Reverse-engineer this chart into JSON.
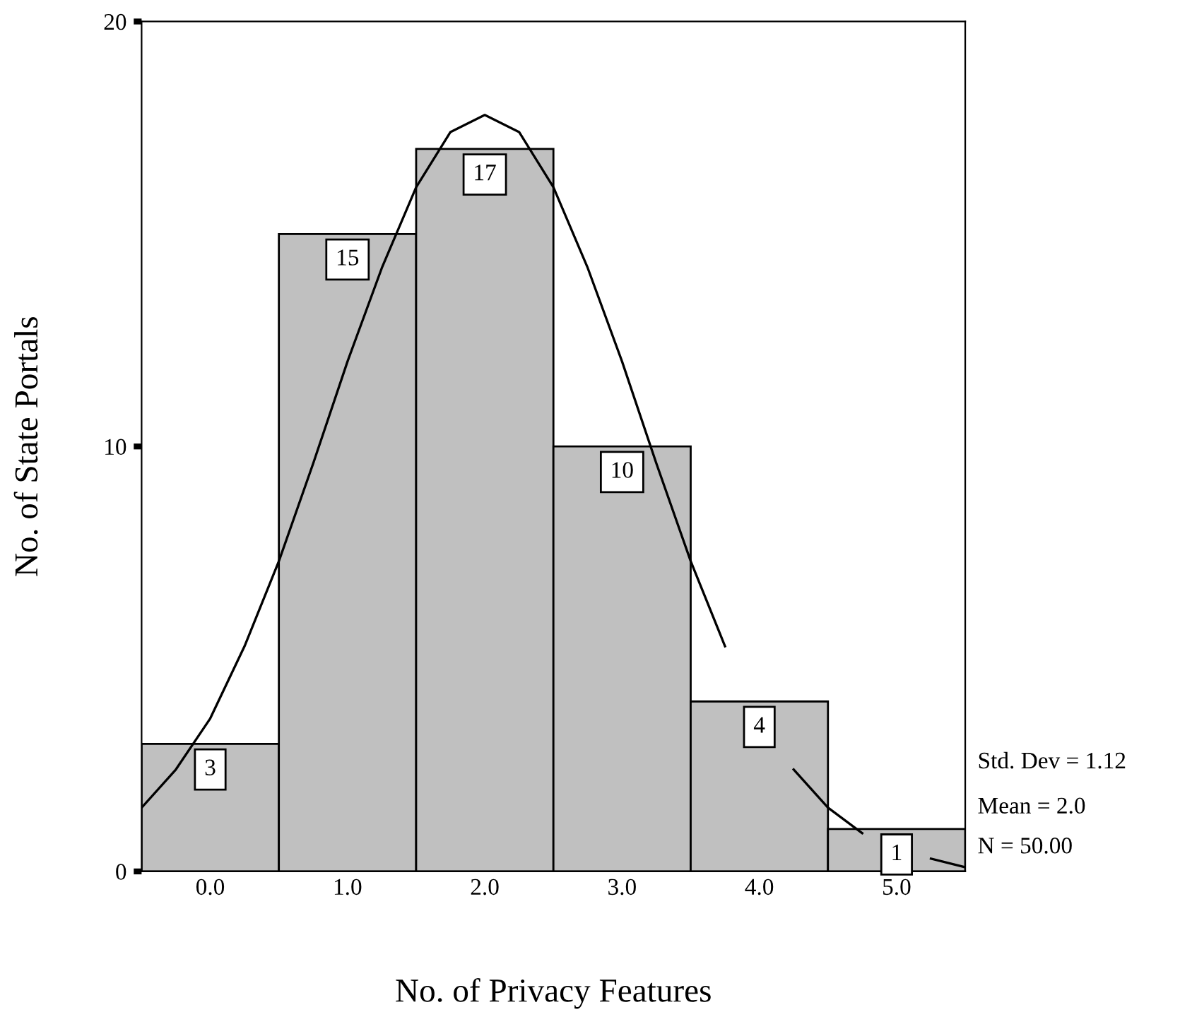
{
  "chart_data": {
    "type": "histogram",
    "xlabel": "No. of Privacy Features",
    "ylabel": "No. of State Portals",
    "bins": [
      -0.5,
      0.5,
      1.5,
      2.5,
      3.5,
      4.5,
      5.5
    ],
    "values": [
      3,
      15,
      17,
      10,
      4,
      1
    ],
    "color": "#c0c0c0",
    "value_labels": [
      "3",
      "15",
      "17",
      "10",
      "4",
      "1"
    ],
    "series": [
      {
        "type": "line",
        "color": "#000000",
        "x": [
          -0.5,
          -0.25,
          0,
          0.25,
          0.5,
          0.75,
          1,
          1.25,
          1.5,
          1.75,
          2,
          2.25,
          2.5,
          2.75,
          3,
          3.25,
          3.5,
          3.75,
          4,
          4.25,
          4.5,
          4.75,
          5,
          5.25,
          5.5
        ],
        "values": [
          1.5,
          2.4,
          3.6,
          5.3,
          7.3,
          9.6,
          12.0,
          14.2,
          16.1,
          17.4,
          17.8,
          17.4,
          16.1,
          14.2,
          12.0,
          9.6,
          7.3,
          5.3,
          null,
          2.4,
          1.5,
          0.9,
          null,
          0.3,
          0.1
        ]
      }
    ],
    "xlim": [
      -0.5,
      5.5
    ],
    "xticks": [
      {
        "value": 0,
        "label": "0.0"
      },
      {
        "value": 1,
        "label": "1.0"
      },
      {
        "value": 2,
        "label": "2.0"
      },
      {
        "value": 3,
        "label": "3.0"
      },
      {
        "value": 4,
        "label": "4.0"
      },
      {
        "value": 5,
        "label": "5.0"
      }
    ],
    "ylim": [
      0,
      20
    ],
    "yticks": [
      0,
      10,
      20
    ],
    "grid": false,
    "legend": false,
    "annotations": [
      "Std. Dev = 1.12",
      "Mean = 2.0",
      "N = 50.00"
    ]
  }
}
